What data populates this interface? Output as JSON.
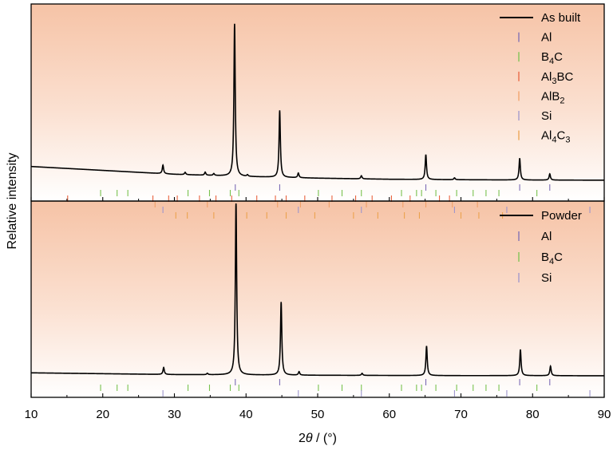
{
  "chart_data": {
    "type": "line",
    "xlabel": "2θ / (°)",
    "xlabel_parts": {
      "prefix": "2",
      "theta": "θ",
      "suffix": " / (°)"
    },
    "ylabel": "Relative intensity",
    "xlim": [
      10,
      90
    ],
    "xticks": [
      "10",
      "20",
      "30",
      "40",
      "50",
      "60",
      "70",
      "80",
      "90"
    ],
    "colors": {
      "line": "#000000",
      "background_top": "#f6c3a6",
      "background_bottom": "#ffffff",
      "Al": "#7b6bb5",
      "B4C": "#79c24f",
      "Al3BC": "#e8633f",
      "AlB2": "#f0a068",
      "Si": "#9d95cc",
      "Al4C3": "#eba24e"
    },
    "panels": [
      {
        "legend_label": "As built",
        "legend": [
          {
            "key": "Al",
            "base": "Al",
            "sub": "",
            "tail": ""
          },
          {
            "key": "B4C",
            "base": "B",
            "sub": "4",
            "tail": "C"
          },
          {
            "key": "Al3BC",
            "base": "Al",
            "sub": "3",
            "tail": "BC"
          },
          {
            "key": "AlB2",
            "base": "AlB",
            "sub": "2",
            "tail": ""
          },
          {
            "key": "Si",
            "base": "Si",
            "sub": "",
            "tail": ""
          },
          {
            "key": "Al4C3",
            "base": "Al",
            "sub": "4",
            "tail": "C3"
          }
        ],
        "baseline_points": [
          [
            10,
            0.135
          ],
          [
            20,
            0.11
          ],
          [
            30,
            0.085
          ],
          [
            40,
            0.07
          ],
          [
            50,
            0.06
          ],
          [
            60,
            0.053
          ],
          [
            70,
            0.05
          ],
          [
            80,
            0.048
          ],
          [
            90,
            0.047
          ]
        ],
        "peaks": [
          [
            28.4,
            0.055
          ],
          [
            31.5,
            0.015
          ],
          [
            34.3,
            0.02
          ],
          [
            35.5,
            0.012
          ],
          [
            38.4,
            0.98
          ],
          [
            40.2,
            0.01
          ],
          [
            44.7,
            0.43
          ],
          [
            47.3,
            0.03
          ],
          [
            56.1,
            0.02
          ],
          [
            65.1,
            0.16
          ],
          [
            69.1,
            0.012
          ],
          [
            78.2,
            0.14
          ],
          [
            82.4,
            0.04
          ]
        ],
        "reference_rows": [
          {
            "phase": "Al",
            "positions": [
              38.5,
              44.7,
              65.1,
              78.2,
              82.4
            ]
          },
          {
            "phase": "B4C",
            "positions": [
              19.7,
              22.0,
              23.5,
              31.9,
              34.9,
              37.8,
              39.0,
              50.1,
              53.4,
              56.1,
              61.7,
              63.8,
              64.5,
              66.5,
              69.4,
              71.7,
              73.5,
              75.3,
              80.6
            ]
          },
          {
            "phase": "Al3BC",
            "positions": [
              15.1,
              27.0,
              29.2,
              30.4,
              33.5,
              35.8,
              38.0,
              41.5,
              44.1,
              45.6,
              48.2,
              52.0,
              55.3,
              57.6,
              60.3,
              62.9,
              67.0,
              68.4
            ]
          },
          {
            "phase": "AlB2",
            "positions": [
              27.3,
              34.6,
              44.4,
              47.6,
              51.6,
              56.8,
              61.9,
              65.1,
              68.8,
              72.3
            ]
          },
          {
            "phase": "Si",
            "positions": [
              28.4,
              47.3,
              56.1,
              69.1,
              76.4,
              88.0
            ]
          },
          {
            "phase": "Al4C3",
            "positions": [
              30.2,
              31.8,
              35.5,
              40.1,
              42.9,
              45.6,
              49.6,
              55.0,
              58.4,
              62.1,
              64.2,
              70.0,
              72.5,
              75.8
            ]
          }
        ]
      },
      {
        "legend_label": "Powder",
        "legend": [
          {
            "key": "Al",
            "base": "Al",
            "sub": "",
            "tail": ""
          },
          {
            "key": "B4C",
            "base": "B",
            "sub": "4",
            "tail": "C"
          },
          {
            "key": "Si",
            "base": "Si",
            "sub": "",
            "tail": ""
          }
        ],
        "baseline_points": [
          [
            10,
            0.04
          ],
          [
            20,
            0.035
          ],
          [
            30,
            0.03
          ],
          [
            40,
            0.028
          ],
          [
            50,
            0.026
          ],
          [
            60,
            0.025
          ],
          [
            70,
            0.024
          ],
          [
            80,
            0.024
          ],
          [
            90,
            0.023
          ]
        ],
        "peaks": [
          [
            28.5,
            0.04
          ],
          [
            34.6,
            0.008
          ],
          [
            38.6,
            1.0
          ],
          [
            44.9,
            0.42
          ],
          [
            47.4,
            0.02
          ],
          [
            56.2,
            0.012
          ],
          [
            65.2,
            0.17
          ],
          [
            78.3,
            0.15
          ],
          [
            82.5,
            0.055
          ]
        ],
        "reference_rows": [
          {
            "phase": "Al",
            "positions": [
              38.5,
              44.7,
              65.1,
              78.2,
              82.4
            ]
          },
          {
            "phase": "B4C",
            "positions": [
              19.7,
              22.0,
              23.5,
              31.9,
              34.9,
              37.8,
              39.0,
              50.1,
              53.4,
              56.1,
              61.7,
              63.8,
              64.5,
              66.5,
              69.4,
              71.7,
              73.5,
              75.3,
              80.6
            ]
          },
          {
            "phase": "Si",
            "positions": [
              28.4,
              47.3,
              56.1,
              69.1,
              76.4,
              88.0
            ]
          }
        ]
      }
    ]
  }
}
